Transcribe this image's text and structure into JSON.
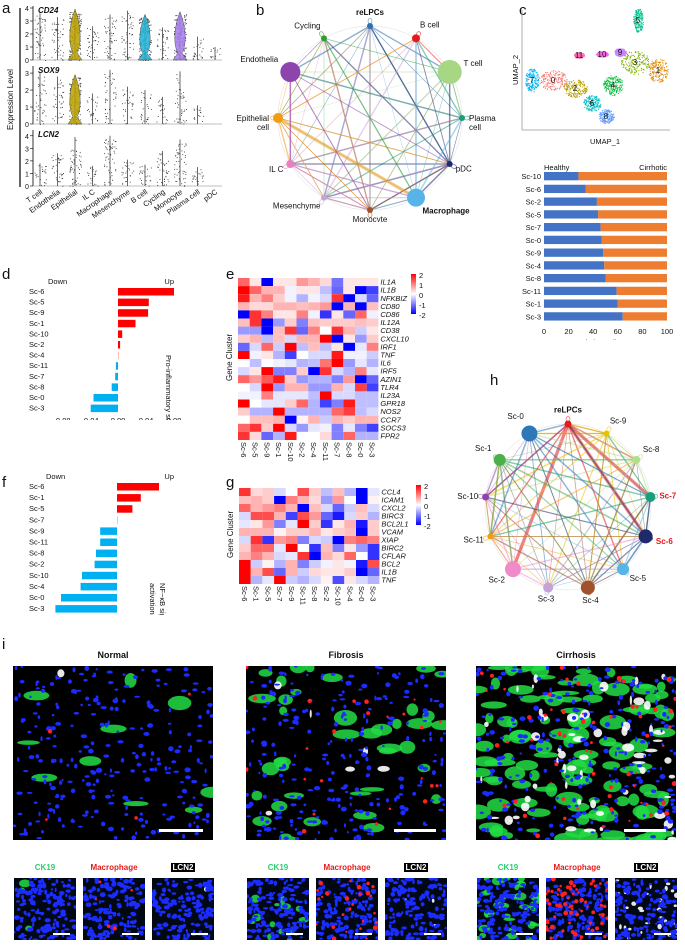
{
  "panels": {
    "a": {
      "letter": "a",
      "ylabel": "Expression Level",
      "cell_types": [
        "T cell",
        "Endothelia",
        "Epithelial",
        "IL C",
        "Macrophage",
        "Mesenchyme",
        "B cell",
        "Cycling",
        "Monocyte",
        "Plasma cell",
        "pDC"
      ],
      "genes": [
        {
          "name": "CD24",
          "yticks": [
            "0",
            "1",
            "2",
            "3",
            "4"
          ],
          "ymax": 4,
          "max_vals": [
            3.6,
            3.3,
            3.9,
            2.6,
            3.5,
            3.8,
            3.5,
            2.5,
            3.7,
            1.8,
            1.0
          ],
          "violin_color": {
            "2": "#b8a000",
            "6": "#1fb3d6",
            "8": "#a77bf0"
          }
        },
        {
          "name": "SOX9",
          "yticks": [
            "0",
            "1",
            "2",
            "3"
          ],
          "ymax": 3.3,
          "max_vals": [
            3.0,
            2.8,
            2.9,
            1.8,
            3.2,
            2.2,
            2.0,
            1.6,
            3.1,
            1.1,
            0
          ],
          "violin_color": {
            "2": "#b8a000"
          }
        },
        {
          "name": "LCN2",
          "yticks": [
            "0",
            "1",
            "2",
            "3",
            "4"
          ],
          "ymax": 4.3,
          "max_vals": [
            1.8,
            2.6,
            3.9,
            1.6,
            4.0,
            2.1,
            1.7,
            2.8,
            3.7,
            1.5,
            0
          ],
          "violin_color": {}
        }
      ]
    },
    "b": {
      "letter": "b",
      "nodes": [
        {
          "label": "reLPCs",
          "color": "#2e6fad",
          "bold": true
        },
        {
          "label": "B cell",
          "color": "#e41a1c",
          "bold": false
        },
        {
          "label": "T cell",
          "color": "#a8d784",
          "bold": false
        },
        {
          "label": "Plasma\ncell",
          "color": "#1b9e77",
          "bold": false
        },
        {
          "label": "pDC",
          "color": "#1f2a6b",
          "bold": false
        },
        {
          "label": "Macrophage",
          "color": "#56b4e9",
          "bold": true
        },
        {
          "label": "Monocyte",
          "color": "#a0522d",
          "bold": false
        },
        {
          "label": "Mesenchyme",
          "color": "#c5a3d6",
          "bold": false
        },
        {
          "label": "IL C",
          "color": "#e77fc0",
          "bold": false
        },
        {
          "label": "Epithelial\ncell",
          "color": "#f39c12",
          "bold": false
        },
        {
          "label": "Endothelia",
          "color": "#8e44ad",
          "bold": false
        },
        {
          "label": "Cycling",
          "color": "#2ca02c",
          "bold": false
        }
      ]
    },
    "c": {
      "letter": "c",
      "umap": {
        "xlabel": "UMAP_1",
        "ylabel": "UMAP_2",
        "clusters": [
          {
            "id": "0",
            "color": "#f8766d"
          },
          {
            "id": "1",
            "color": "#e08b00"
          },
          {
            "id": "2",
            "color": "#b79f00"
          },
          {
            "id": "3",
            "color": "#7cae00"
          },
          {
            "id": "4",
            "color": "#00ba38"
          },
          {
            "id": "5",
            "color": "#00c08b"
          },
          {
            "id": "6",
            "color": "#00bfc4"
          },
          {
            "id": "7",
            "color": "#00b4f0"
          },
          {
            "id": "8",
            "color": "#619cff"
          },
          {
            "id": "9",
            "color": "#c77cff"
          },
          {
            "id": "10",
            "color": "#f564e3"
          },
          {
            "id": "11",
            "color": "#ff64b0"
          }
        ]
      },
      "bar": {
        "legend_left": "Healthy",
        "legend_right": "Cirrhotic",
        "xlabel": "% relative cell source",
        "xticks": [
          "0",
          "20",
          "40",
          "60",
          "80",
          "100"
        ],
        "healthy_color": "#4472c4",
        "cirrhotic_color": "#ed7d31"
      }
    },
    "d": {
      "letter": "d",
      "down_label": "Down",
      "up_label": "Up",
      "ylabel": "Pro-inflammatory score",
      "xticks": [
        "-0.08",
        "-0.04",
        "0.00",
        "0.04",
        "0.08"
      ]
    },
    "e": {
      "letter": "e",
      "ylabel": "Gene Cluster",
      "legend_ticks": [
        "2",
        "1",
        "0",
        "-1",
        "-2"
      ]
    },
    "f": {
      "letter": "f",
      "down_label": "Down",
      "up_label": "Up",
      "ylabel_line1": "NF−κB signaling",
      "ylabel_line2": "activation rate",
      "xticks": [
        "-0.04",
        "-0.02",
        "0.00",
        "0.02",
        "0.04"
      ]
    },
    "g": {
      "letter": "g",
      "ylabel": "Gene Cluster",
      "legend_ticks": [
        "2",
        "1",
        "0",
        "-1",
        "-2"
      ]
    },
    "h": {
      "letter": "h",
      "nodes": [
        {
          "label": "reLPCs",
          "color": "#e41a1c",
          "bold": true,
          "highlight": false
        },
        {
          "label": "Sc-9",
          "color": "#e6c200",
          "bold": false,
          "highlight": false
        },
        {
          "label": "Sc-8",
          "color": "#b2df8a",
          "bold": false,
          "highlight": false
        },
        {
          "label": "Sc-7",
          "color": "#1b9e77",
          "bold": true,
          "highlight": true
        },
        {
          "label": "Sc-6",
          "color": "#1f2a6b",
          "bold": true,
          "highlight": true
        },
        {
          "label": "Sc-5",
          "color": "#56b4e9",
          "bold": false,
          "highlight": false
        },
        {
          "label": "Sc-4",
          "color": "#a0522d",
          "bold": false,
          "highlight": false
        },
        {
          "label": "Sc-3",
          "color": "#c5a3d6",
          "bold": false,
          "highlight": false
        },
        {
          "label": "Sc-2",
          "color": "#f08ac8",
          "bold": false,
          "highlight": false
        },
        {
          "label": "Sc-11",
          "color": "#f39c12",
          "bold": false,
          "highlight": false
        },
        {
          "label": "Sc-10",
          "color": "#8e44ad",
          "bold": false,
          "highlight": false
        },
        {
          "label": "Sc-1",
          "color": "#4daf4a",
          "bold": false,
          "highlight": false
        },
        {
          "label": "Sc-0",
          "color": "#2e78b7",
          "bold": false,
          "highlight": false
        }
      ]
    },
    "i": {
      "letter": "i",
      "conditions": [
        {
          "title": "Normal"
        },
        {
          "title": "Fibrosis"
        },
        {
          "title": "Cirrhosis"
        }
      ],
      "channels": [
        {
          "label": "CK19",
          "color": "#2ecc71"
        },
        {
          "label": "Macrophage",
          "color": "#e41a1c"
        },
        {
          "label": "LCN2",
          "color": "#ffffff",
          "bg": "#000000"
        }
      ]
    }
  },
  "chart_data": [
    {
      "id": "c-bar",
      "type": "bar",
      "orientation": "horizontal",
      "stacked": true,
      "title": "",
      "xlabel": "% relative cell source",
      "ylabel": "",
      "categories": [
        "Sc-10",
        "Sc-6",
        "Sc-2",
        "Sc-5",
        "Sc-7",
        "Sc-0",
        "Sc-9",
        "Sc-4",
        "Sc-8",
        "Sc-11",
        "Sc-1",
        "Sc-3"
      ],
      "series": [
        {
          "name": "Healthy",
          "values": [
            28,
            34,
            43,
            44,
            46,
            47,
            48,
            49,
            50,
            59,
            60,
            64
          ]
        },
        {
          "name": "Cirrhotic",
          "values": [
            72,
            66,
            57,
            56,
            54,
            53,
            52,
            51,
            50,
            41,
            40,
            36
          ]
        }
      ],
      "xlim": [
        0,
        100
      ],
      "legend": "top"
    },
    {
      "id": "d-bar",
      "type": "bar",
      "orientation": "horizontal",
      "title": "",
      "xlabel": "",
      "ylabel": "Pro-inflammatory score",
      "categories": [
        "Sc-6",
        "Sc-5",
        "Sc-9",
        "Sc-1",
        "Sc-10",
        "Sc-2",
        "Sc-4",
        "Sc-11",
        "Sc-7",
        "Sc-8",
        "Sc-0",
        "Sc-3"
      ],
      "values": [
        0.08,
        0.044,
        0.043,
        0.025,
        0.006,
        0.003,
        0.001,
        -0.003,
        -0.004,
        -0.009,
        -0.035,
        -0.039
      ],
      "xlim": [
        -0.1,
        0.1
      ],
      "up_color": "#ff0000",
      "down_color": "#00b0f0"
    },
    {
      "id": "e-heatmap",
      "type": "heatmap",
      "title": "",
      "ylabel": "Gene Cluster",
      "columns": [
        "Sc-6",
        "Sc-5",
        "Sc-9",
        "Sc-1",
        "Sc-10",
        "Sc-2",
        "Sc-4",
        "Sc-11",
        "Sc-7",
        "Sc-8",
        "Sc-0",
        "Sc-3"
      ],
      "rows": [
        "IL1A",
        "IL1B",
        "NFKBIZ",
        "CD80",
        "CD86",
        "IL12A",
        "CD38",
        "CXCL10",
        "IRF1",
        "TNF",
        "IL6",
        "IRF5",
        "AZIN1",
        "TLR4",
        "IL23A",
        "GPR18",
        "NOS2",
        "CCR7",
        "SOCS3",
        "FPR2"
      ],
      "values": [
        [
          1.2,
          0.2,
          -2.3,
          0.2,
          0.2,
          0.8,
          0.6,
          0.3,
          -1.1,
          0.2,
          0.2,
          0.2
        ],
        [
          2.0,
          1.2,
          0.6,
          0.6,
          -0.1,
          0.2,
          0.2,
          -0.5,
          -1.2,
          0.2,
          -2.0,
          -1.5
        ],
        [
          1.8,
          0.6,
          1.0,
          0.4,
          -0.1,
          -0.6,
          -0.1,
          -0.3,
          1.6,
          -2.3,
          -0.3,
          -1.2
        ],
        [
          0.6,
          0.3,
          0.3,
          0.6,
          0.6,
          0.5,
          0.6,
          0.8,
          -2.3,
          0.6,
          -2.3,
          0.5
        ],
        [
          -2.3,
          1.6,
          1.0,
          0.2,
          0.2,
          1.0,
          -0.1,
          -1.6,
          0.2,
          -1.2,
          1.2,
          -0.1
        ],
        [
          0.5,
          1.6,
          -2.3,
          -0.8,
          0.4,
          -1.0,
          0.5,
          0.4,
          0.4,
          0.4,
          0.5,
          0.4
        ],
        [
          -0.8,
          -0.8,
          -2.3,
          0.5,
          1.6,
          -1.2,
          1.0,
          0.0,
          1.6,
          0.6,
          -0.4,
          0.2
        ],
        [
          0.4,
          0.6,
          -0.5,
          0.5,
          -0.3,
          0.6,
          0.6,
          2.0,
          -2.3,
          0.2,
          -0.8,
          0.4
        ],
        [
          -1.2,
          -0.3,
          1.2,
          -0.4,
          2.0,
          -0.5,
          0.5,
          -0.5,
          0.2,
          -2.3,
          -0.2,
          1.0
        ],
        [
          2.3,
          -0.1,
          0.2,
          -0.6,
          -1.5,
          0.0,
          -0.3,
          -0.3,
          1.8,
          -0.1,
          -0.1,
          -0.4
        ],
        [
          0.0,
          -0.5,
          0.0,
          -0.1,
          -0.2,
          -0.6,
          -0.5,
          1.1,
          2.2,
          -0.8,
          -0.2,
          -0.6
        ],
        [
          -0.3,
          0.2,
          2.0,
          -1.0,
          -1.0,
          0.4,
          -2.0,
          1.6,
          -0.3,
          -0.6,
          1.0,
          -0.2
        ],
        [
          1.2,
          0.8,
          1.3,
          1.8,
          0.4,
          -0.8,
          -0.6,
          -0.6,
          -1.0,
          0.8,
          -2.0,
          -1.2
        ],
        [
          0.0,
          -0.3,
          2.0,
          -0.8,
          0.6,
          0.6,
          -0.8,
          -0.8,
          0.6,
          -0.3,
          1.5,
          -1.5
        ],
        [
          -0.1,
          -0.1,
          1.0,
          -0.2,
          -0.2,
          -0.2,
          -0.5,
          2.2,
          -0.3,
          -0.3,
          -0.5,
          -0.5
        ],
        [
          2.2,
          0.0,
          -0.2,
          -0.2,
          0.4,
          1.2,
          -0.6,
          -1.5,
          -1.0,
          1.8,
          -0.5,
          -0.5
        ],
        [
          0.4,
          -0.6,
          -0.6,
          2.3,
          -0.6,
          -0.6,
          -0.6,
          -0.6,
          1.2,
          1.5,
          -0.5,
          -0.3
        ],
        [
          0.0,
          0.5,
          0.5,
          0.6,
          -2.4,
          0.1,
          0.6,
          -0.4,
          0.6,
          0.4,
          0.6,
          0.6
        ],
        [
          1.2,
          1.6,
          0.4,
          2.2,
          -0.3,
          -0.8,
          -0.2,
          -0.1,
          -1.0,
          -0.2,
          -1.0,
          -1.5
        ],
        [
          1.6,
          0.3,
          -1.2,
          -0.6,
          1.8,
          0.0,
          0.0,
          0.3,
          -1.0,
          1.2,
          -0.6,
          -0.6
        ]
      ],
      "colorbar": {
        "min": -2,
        "max": 2,
        "ticks": [
          2,
          1,
          0,
          -1,
          -2
        ],
        "low": "#0000ff",
        "mid": "#ffffff",
        "high": "#ff0000"
      }
    },
    {
      "id": "f-bar",
      "type": "bar",
      "orientation": "horizontal",
      "title": "",
      "xlabel": "",
      "ylabel": "NF−κB signaling activation rate",
      "categories": [
        "Sc-6",
        "Sc-1",
        "Sc-5",
        "Sc-7",
        "Sc-9",
        "Sc-11",
        "Sc-8",
        "Sc-2",
        "Sc-10",
        "Sc-4",
        "Sc-0",
        "Sc-3"
      ],
      "values": [
        0.03,
        0.017,
        0.011,
        0.0005,
        -0.012,
        -0.012,
        -0.015,
        -0.016,
        -0.025,
        -0.026,
        -0.04,
        -0.044
      ],
      "xlim": [
        -0.05,
        0.05
      ],
      "up_color": "#ff0000",
      "down_color": "#00b0f0"
    },
    {
      "id": "g-heatmap",
      "type": "heatmap",
      "title": "",
      "ylabel": "Gene Cluster",
      "columns": [
        "Sc-6",
        "Sc-1",
        "Sc-5",
        "Sc-7",
        "Sc-9",
        "Sc-11",
        "Sc-8",
        "Sc-2",
        "Sc-10",
        "Sc-4",
        "Sc-0",
        "Sc-3"
      ],
      "rows": [
        "CCL4",
        "ICAM1",
        "CXCL2",
        "BIRC3",
        "BCL2L1",
        "VCAM",
        "XIAP",
        "BIRC2",
        "CFLAR",
        "BCL2",
        "IL1B",
        "TNF"
      ],
      "values": [
        [
          1.6,
          0.3,
          0.4,
          -0.3,
          0.0,
          1.4,
          0.4,
          -0.5,
          0.5,
          -0.6,
          -2.4,
          -0.2
        ],
        [
          0.5,
          0.6,
          0.4,
          -2.3,
          1.0,
          0.6,
          0.3,
          -0.8,
          0.8,
          0.0,
          -2.4,
          0.1
        ],
        [
          1.2,
          0.6,
          0.8,
          1.0,
          0.6,
          -2.4,
          0.5,
          -0.3,
          -1.2,
          -0.4,
          0.5,
          -0.3
        ],
        [
          -0.3,
          1.4,
          1.4,
          0.6,
          -1.5,
          1.4,
          0.8,
          -1.2,
          -1.8,
          -0.3,
          0.4,
          -0.6
        ],
        [
          -0.2,
          0.2,
          0.8,
          -1.0,
          -0.2,
          2.2,
          0.4,
          -1.6,
          0.2,
          0.6,
          -1.8,
          0.4
        ],
        [
          0.6,
          0.6,
          0.6,
          0.1,
          0.4,
          0.4,
          0.6,
          0.2,
          0.4,
          0.5,
          -2.3,
          0.4
        ],
        [
          -0.3,
          1.6,
          -1.6,
          0.8,
          1.0,
          -1.0,
          -0.3,
          -0.4,
          -2.0,
          1.0,
          1.2,
          1.0
        ],
        [
          0.4,
          1.2,
          1.2,
          -0.2,
          2.2,
          0.0,
          -1.6,
          0.5,
          -1.0,
          0.2,
          -0.8,
          -1.6
        ],
        [
          0.6,
          1.0,
          0.6,
          -0.3,
          -0.2,
          1.6,
          -2.4,
          0.6,
          0.3,
          1.2,
          0.0,
          -1.6
        ],
        [
          2.3,
          -0.4,
          0.1,
          -0.6,
          0.6,
          -1.0,
          -0.4,
          -0.1,
          0.2,
          -0.1,
          -1.8,
          1.4
        ],
        [
          2.3,
          0.6,
          1.4,
          -1.2,
          0.6,
          -0.4,
          0.3,
          0.2,
          0.2,
          0.4,
          -2.0,
          -1.2
        ],
        [
          2.4,
          -0.6,
          -0.2,
          2.0,
          -0.4,
          -0.6,
          -0.3,
          0.1,
          -1.4,
          0.2,
          -0.3,
          -0.6
        ]
      ],
      "colorbar": {
        "min": -2,
        "max": 2,
        "ticks": [
          2,
          1,
          0,
          -1,
          -2
        ],
        "low": "#0000ff",
        "mid": "#ffffff",
        "high": "#ff0000"
      }
    }
  ]
}
